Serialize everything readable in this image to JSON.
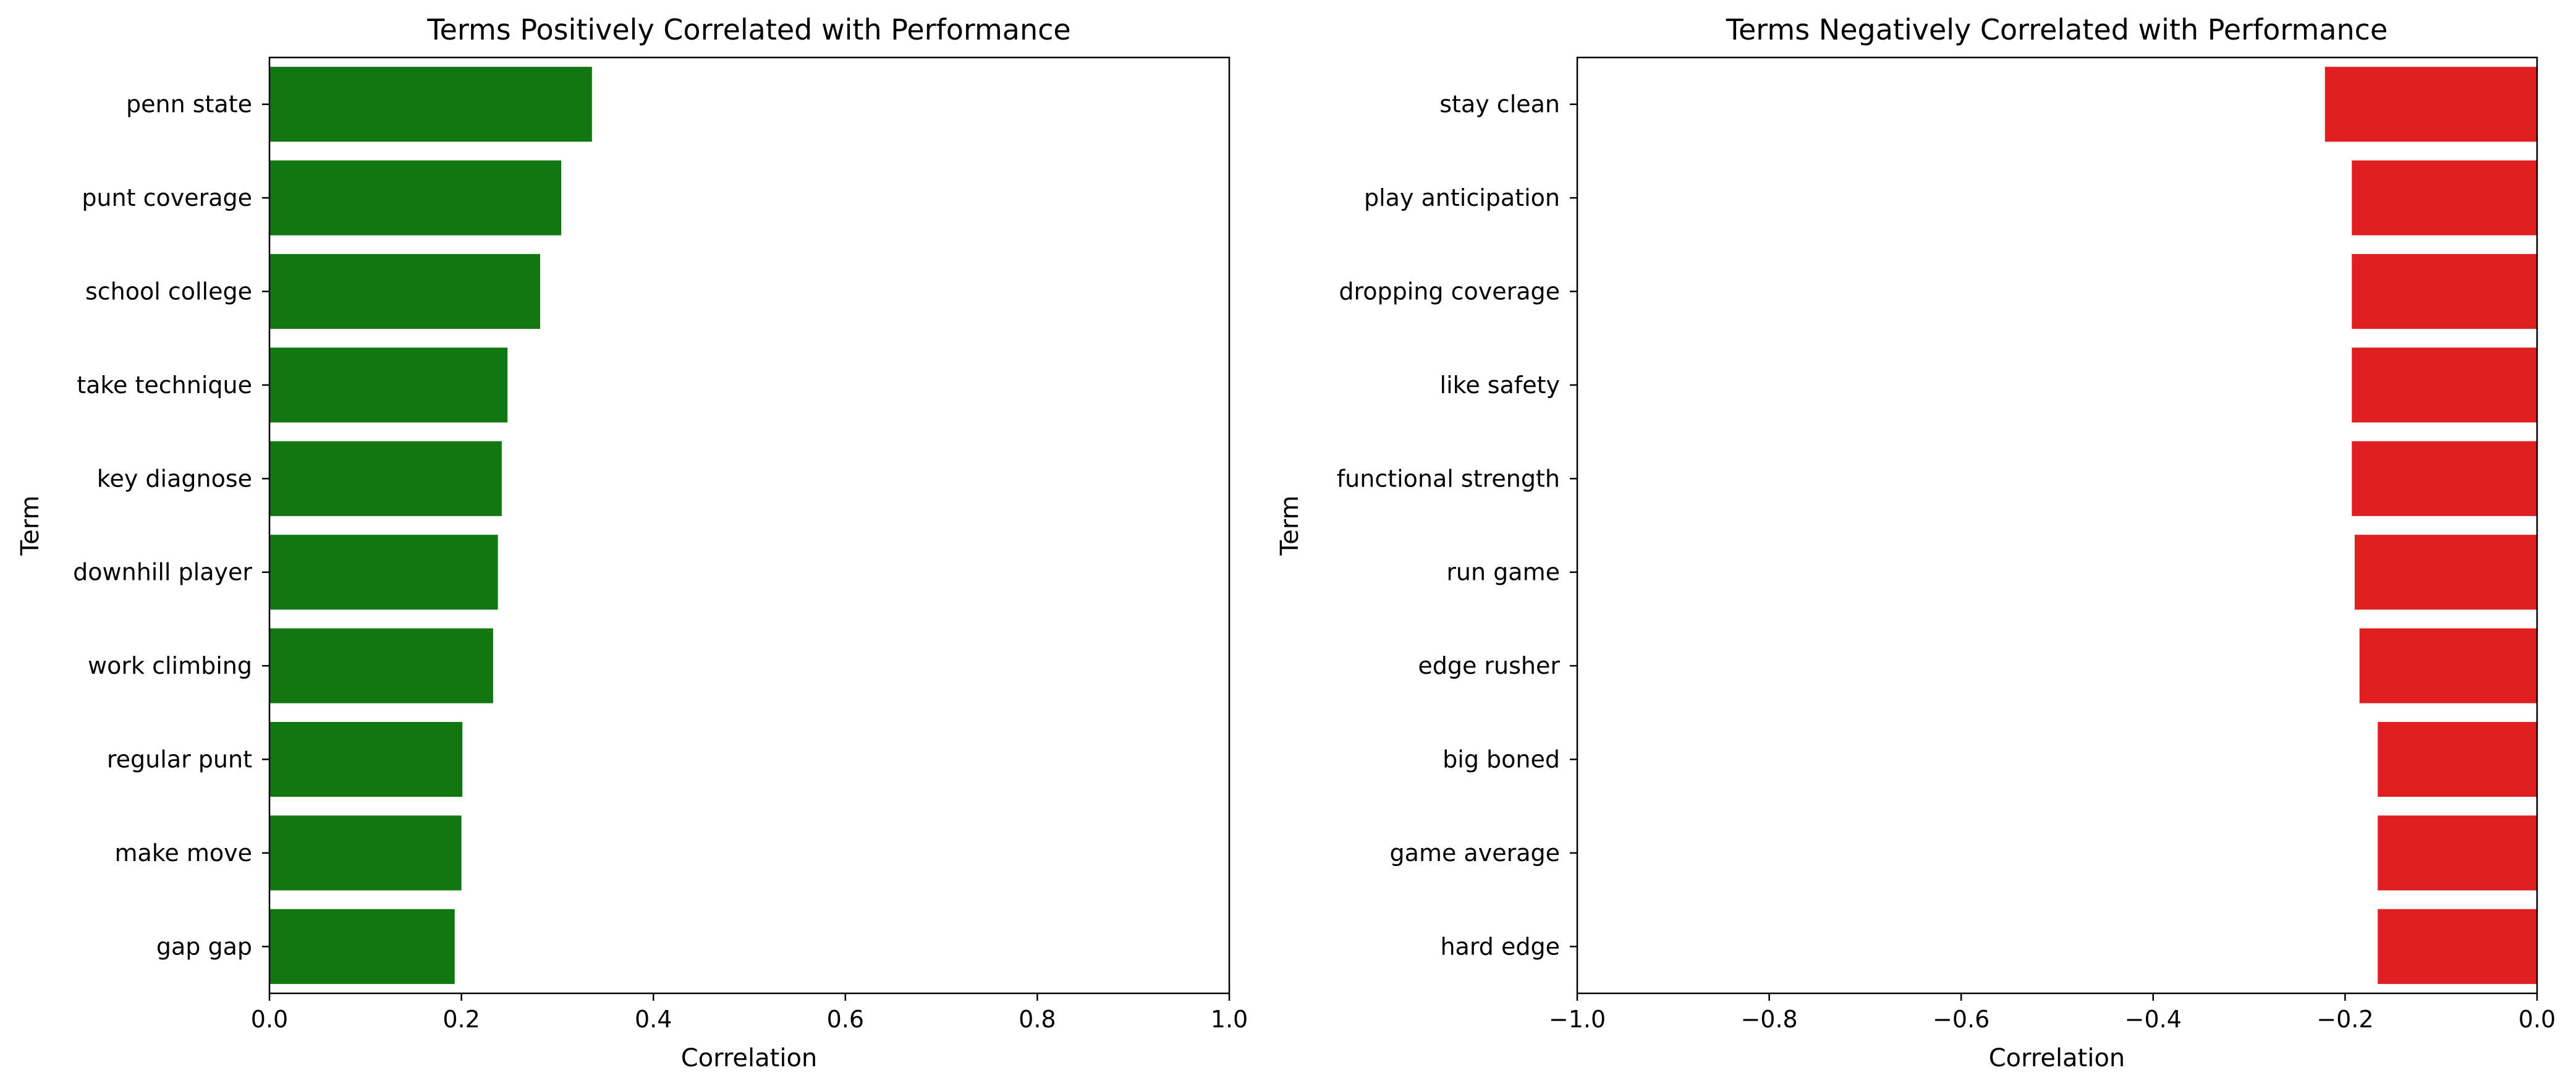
{
  "chart_data": [
    {
      "type": "bar",
      "orientation": "horizontal",
      "title": "Terms Positively Correlated with Performance",
      "xlabel": "Correlation",
      "ylabel": "Term",
      "xlim": [
        0,
        1
      ],
      "xticks": [
        0,
        0.2,
        0.4,
        0.6,
        0.8,
        1.0
      ],
      "xtick_labels": [
        "0.0",
        "0.2",
        "0.4",
        "0.6",
        "0.8",
        "1.0"
      ],
      "categories": [
        "penn state",
        "punt coverage",
        "school college",
        "take technique",
        "key diagnose",
        "downhill player",
        "work climbing",
        "regular punt",
        "make move",
        "gap gap"
      ],
      "values": [
        0.336,
        0.304,
        0.282,
        0.248,
        0.242,
        0.238,
        0.233,
        0.201,
        0.2,
        0.193
      ],
      "color": "#117711",
      "grid": false
    },
    {
      "type": "bar",
      "orientation": "horizontal",
      "title": "Terms Negatively Correlated with Performance",
      "xlabel": "Correlation",
      "ylabel": "Term",
      "xlim": [
        -1,
        0
      ],
      "xticks": [
        -1.0,
        -0.8,
        -0.6,
        -0.4,
        -0.2,
        0.0
      ],
      "xtick_labels": [
        "−1.0",
        "−0.8",
        "−0.6",
        "−0.4",
        "−0.2",
        "0.0"
      ],
      "categories": [
        "stay clean",
        "play anticipation",
        "dropping coverage",
        "like safety",
        "functional strength",
        "run game",
        "edge rusher",
        "big boned",
        "game average",
        "hard edge"
      ],
      "values": [
        -0.221,
        -0.193,
        -0.193,
        -0.193,
        -0.193,
        -0.19,
        -0.185,
        -0.166,
        -0.166,
        -0.166
      ],
      "color": "#e02020",
      "grid": false
    }
  ]
}
